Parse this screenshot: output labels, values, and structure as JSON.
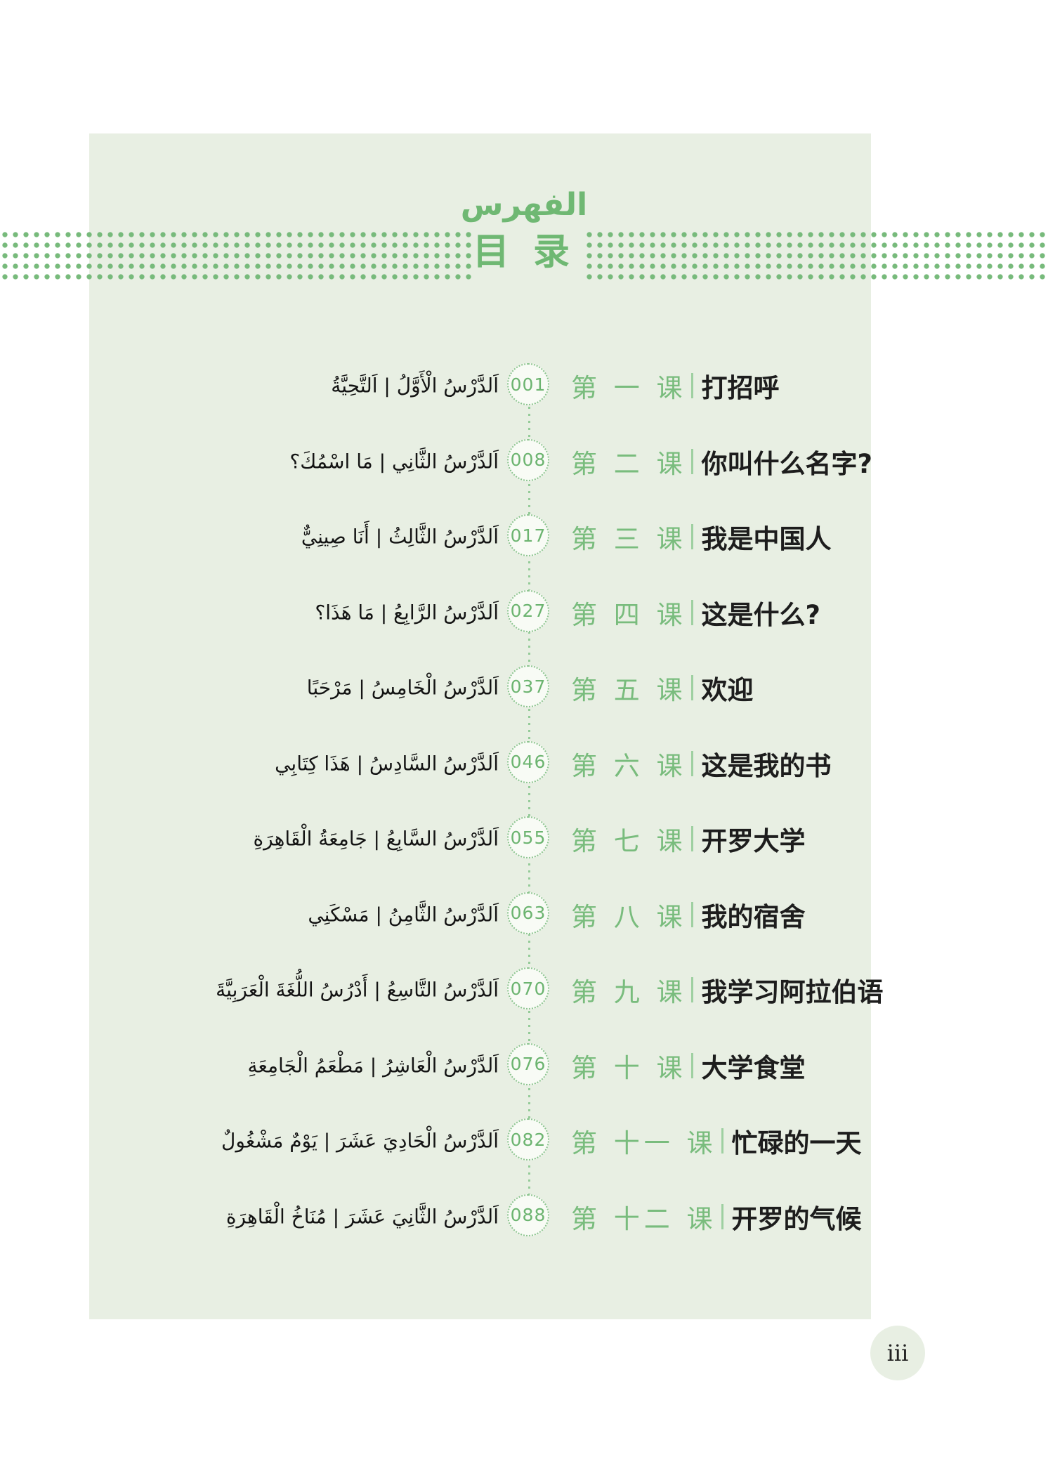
{
  "header": {
    "title_arabic": "الفهرس",
    "title_chinese": "目 录"
  },
  "colors": {
    "accent_green": "#6fb873",
    "panel_background": "#e8efe3",
    "dot_green": "#77ba7b",
    "text_black": "#1d1d1d"
  },
  "toc": {
    "entries": [
      {
        "arabic": "اَلدَّرْسُ الْأَوَّلُ | اَلتَّحِيَّةُ",
        "page": "001",
        "lesson": "第 一 课",
        "title": "打招呼"
      },
      {
        "arabic": "اَلدَّرْسُ الثَّانِي | مَا اسْمُكَ؟",
        "page": "008",
        "lesson": "第 二 课",
        "title": "你叫什么名字?"
      },
      {
        "arabic": "اَلدَّرْسُ الثَّالِثُ | أَنَا صِينِيٌّ",
        "page": "017",
        "lesson": "第 三 课",
        "title": "我是中国人"
      },
      {
        "arabic": "اَلدَّرْسُ الرَّابِعُ | مَا هَذَا؟",
        "page": "027",
        "lesson": "第 四 课",
        "title": "这是什么?"
      },
      {
        "arabic": "اَلدَّرْسُ الْخَامِسُ | مَرْحَبًا",
        "page": "037",
        "lesson": "第 五 课",
        "title": "欢迎"
      },
      {
        "arabic": "اَلدَّرْسُ السَّادِسُ | هَذَا كِتَابِي",
        "page": "046",
        "lesson": "第 六 课",
        "title": "这是我的书"
      },
      {
        "arabic": "اَلدَّرْسُ السَّابِعُ | جَامِعَةُ الْقَاهِرَةِ",
        "page": "055",
        "lesson": "第 七 课",
        "title": "开罗大学"
      },
      {
        "arabic": "اَلدَّرْسُ الثَّامِنُ | مَسْكَنِي",
        "page": "063",
        "lesson": "第 八 课",
        "title": "我的宿舍"
      },
      {
        "arabic": "اَلدَّرْسُ التَّاسِعُ | أَدْرُسُ اللُّغَةَ الْعَرَبِيَّةَ",
        "page": "070",
        "lesson": "第 九 课",
        "title": "我学习阿拉伯语"
      },
      {
        "arabic": "اَلدَّرْسُ الْعَاشِرُ | مَطْعَمُ الْجَامِعَةِ",
        "page": "076",
        "lesson": "第 十 课",
        "title": "大学食堂"
      },
      {
        "arabic": "اَلدَّرْسُ الْحَادِيَ عَشَرَ | يَوْمٌ مَشْغُولٌ",
        "page": "082",
        "lesson": "第 十一 课",
        "title": "忙碌的一天"
      },
      {
        "arabic": "اَلدَّرْسُ الثَّانِيَ عَشَرَ | مُنَاخُ الْقَاهِرَةِ",
        "page": "088",
        "lesson": "第 十二 课",
        "title": "开罗的气候"
      }
    ]
  },
  "footer": {
    "page_number": "iii"
  }
}
